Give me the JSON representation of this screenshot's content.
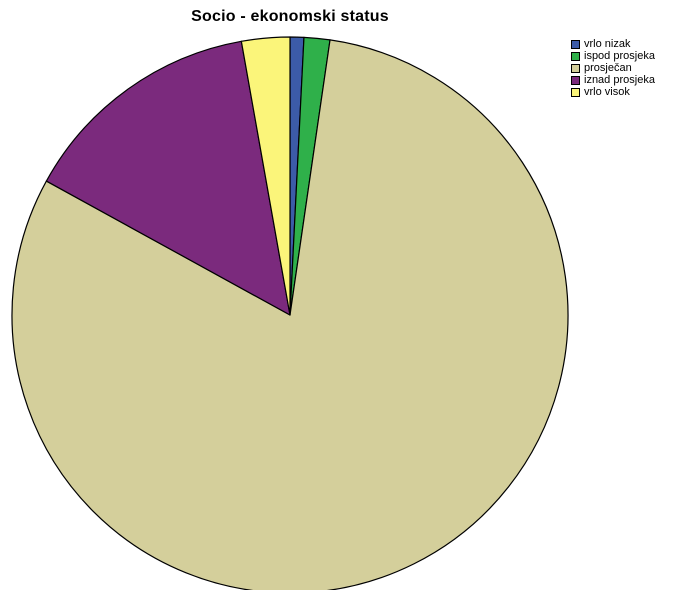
{
  "chart_data": {
    "type": "pie",
    "title": "Socio - ekonomski status",
    "categories": [
      "vrlo nizak",
      "ispod prosjeka",
      "prosječan",
      "iznad prosjeka",
      "vrlo visok"
    ],
    "values": [
      0.8,
      1.5,
      80.7,
      14.2,
      2.8
    ],
    "colors": [
      "#3c5ba8",
      "#2fb04a",
      "#d4cf9b",
      "#7b2a7d",
      "#fbf57a"
    ],
    "legend": "top-right",
    "start_angle_deg": 0,
    "direction": "clockwise"
  }
}
